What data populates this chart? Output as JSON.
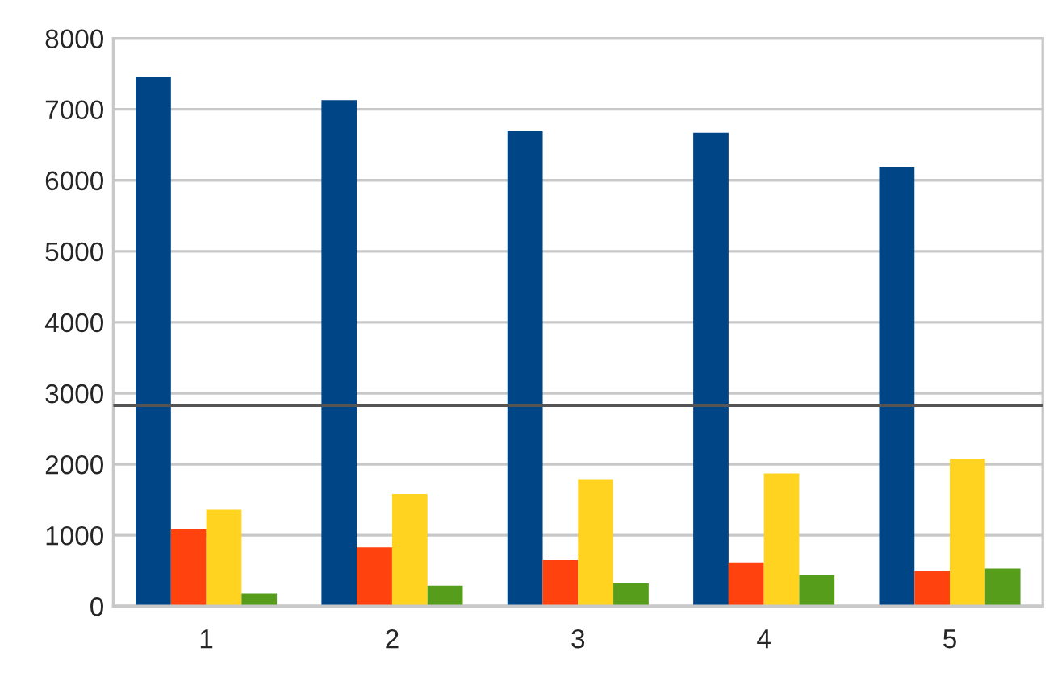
{
  "chart_data": {
    "type": "bar",
    "categories": [
      "1",
      "2",
      "3",
      "4",
      "5"
    ],
    "series": [
      {
        "color": "#004586",
        "values": [
          7460,
          7130,
          6690,
          6670,
          6190
        ]
      },
      {
        "color": "#ff420e",
        "values": [
          1080,
          830,
          650,
          620,
          500
        ]
      },
      {
        "color": "#ffd320",
        "values": [
          1360,
          1580,
          1790,
          1870,
          2080
        ]
      },
      {
        "color": "#579d1c",
        "values": [
          180,
          290,
          320,
          440,
          530
        ]
      }
    ],
    "ylim": [
      0,
      8000
    ],
    "yticks": [
      0,
      1000,
      2000,
      3000,
      4000,
      5000,
      6000,
      7000,
      8000
    ],
    "grid": "y",
    "legend": false,
    "ref_lines": [
      {
        "axis": "y",
        "value": 2830,
        "color": "#555555",
        "line_style": "solid"
      }
    ]
  }
}
